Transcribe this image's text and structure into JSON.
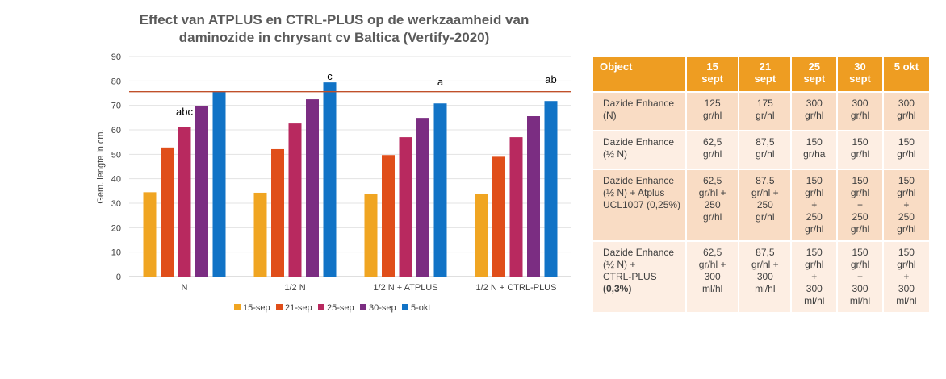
{
  "chart_data": {
    "type": "bar",
    "title_lines": [
      "Effect van ATPLUS en CTRL-PLUS op de werkzaamheid van",
      "daminozide in chrysant cv Baltica (Vertify-2020)"
    ],
    "ylabel": "Gem. lengte in cm.",
    "xlabel": "",
    "ylim": [
      0,
      90
    ],
    "yticks": [
      0,
      10,
      20,
      30,
      40,
      50,
      60,
      70,
      80,
      90
    ],
    "categories": [
      "N",
      "1/2 N",
      "1/2 N + ATPLUS",
      "1/2 N + CTRL-PLUS"
    ],
    "series": [
      {
        "name": "15-sep",
        "color": "#f0a522",
        "values": [
          34.5,
          34.3,
          33.8,
          33.8
        ]
      },
      {
        "name": "21-sep",
        "color": "#e04e1a",
        "values": [
          52.8,
          52.1,
          49.7,
          49.0
        ]
      },
      {
        "name": "25-sep",
        "color": "#b8295f",
        "values": [
          61.3,
          62.6,
          57.0,
          57.0
        ]
      },
      {
        "name": "30-sep",
        "color": "#7b2d82",
        "values": [
          69.8,
          72.5,
          64.9,
          65.6
        ]
      },
      {
        "name": "5-okt",
        "color": "#1173c6",
        "values": [
          75.6,
          79.4,
          70.8,
          71.8
        ]
      }
    ],
    "reference_line": {
      "value": 75.6,
      "color": "#c0502a"
    },
    "annotations": [
      {
        "text": "abc",
        "category": 0
      },
      {
        "text": "c",
        "category": 1
      },
      {
        "text": "a",
        "category": 2
      },
      {
        "text": "ab",
        "category": 3
      }
    ],
    "grid": true,
    "legend_position": "bottom"
  },
  "table": {
    "headers": [
      [
        "Object"
      ],
      [
        "15",
        "sept"
      ],
      [
        "21",
        "sept"
      ],
      [
        "25",
        "sept"
      ],
      [
        "30",
        "sept"
      ],
      [
        "5 okt"
      ]
    ],
    "rows": [
      [
        [
          "Dazide Enhance",
          "(N)"
        ],
        [
          "125",
          "gr/hl"
        ],
        [
          "175",
          "gr/hl"
        ],
        [
          "300",
          "gr/hl"
        ],
        [
          "300",
          "gr/hl"
        ],
        [
          "300",
          "gr/hl"
        ]
      ],
      [
        [
          "Dazide Enhance",
          "(½ N)"
        ],
        [
          "62,5",
          "gr/hl"
        ],
        [
          "87,5",
          "gr/hl"
        ],
        [
          "150",
          "gr/ha"
        ],
        [
          "150",
          "gr/hl"
        ],
        [
          "150",
          "gr/hl"
        ]
      ],
      [
        [
          "Dazide Enhance",
          "(½ N) + Atplus",
          "UCL1007 (0,25%)"
        ],
        [
          "62,5",
          "gr/hl +",
          "250",
          "gr/hl"
        ],
        [
          "87,5",
          "gr/hl +",
          "250",
          "gr/hl"
        ],
        [
          "150",
          "gr/hl",
          "+",
          "250",
          "gr/hl"
        ],
        [
          "150",
          "gr/hl",
          "+",
          "250",
          "gr/hl"
        ],
        [
          "150",
          "gr/hl",
          "+",
          "250",
          "gr/hl"
        ]
      ],
      [
        [
          "Dazide Enhance",
          "(½ N) +",
          "CTRL-PLUS",
          "(0,3%)"
        ],
        [
          "62,5",
          "gr/hl +",
          "300",
          "ml/hl"
        ],
        [
          "87,5",
          "gr/hl +",
          "300",
          "ml/hl"
        ],
        [
          "150",
          "gr/hl",
          "+",
          "300",
          "ml/hl"
        ],
        [
          "150",
          "gr/hl",
          "+",
          "300",
          "ml/hl"
        ],
        [
          "150",
          "gr/hl",
          "+",
          "300",
          "ml/hl"
        ]
      ]
    ]
  }
}
